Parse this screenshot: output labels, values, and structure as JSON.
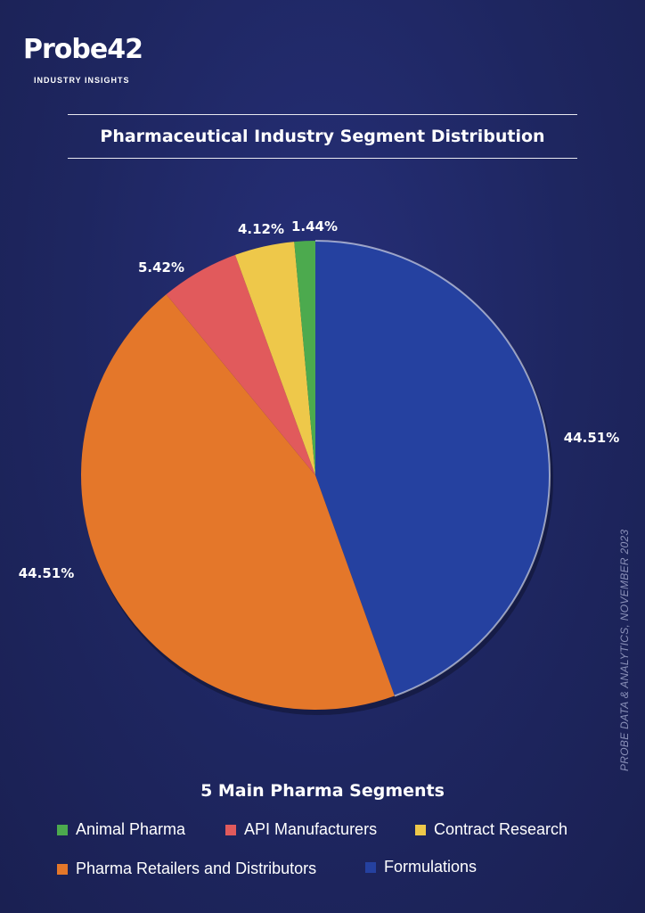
{
  "brand": {
    "name": "Probe42",
    "tagline": "INDUSTRY INSIGHTS"
  },
  "source_note": "PROBE DATA & ANALYTICS, NOVEMBER 2023",
  "chart_data": {
    "type": "pie",
    "title": "Pharmaceutical Industry Segment Distribution",
    "legend_title": "5 Main Pharma Segments",
    "legend_position": "bottom",
    "slices": [
      {
        "name": "Formulations",
        "value": 44.51,
        "label": "44.51%",
        "color": "#2541a0"
      },
      {
        "name": "Pharma Retailers and Distributors",
        "value": 44.51,
        "label": "44.51%",
        "color": "#e4772a"
      },
      {
        "name": "API Manufacturers",
        "value": 5.42,
        "label": "5.42%",
        "color": "#e15a5c"
      },
      {
        "name": "Contract Research",
        "value": 4.12,
        "label": "4.12%",
        "color": "#eec84a"
      },
      {
        "name": "Animal Pharma",
        "value": 1.44,
        "label": "1.44%",
        "color": "#4caa4e"
      }
    ]
  }
}
